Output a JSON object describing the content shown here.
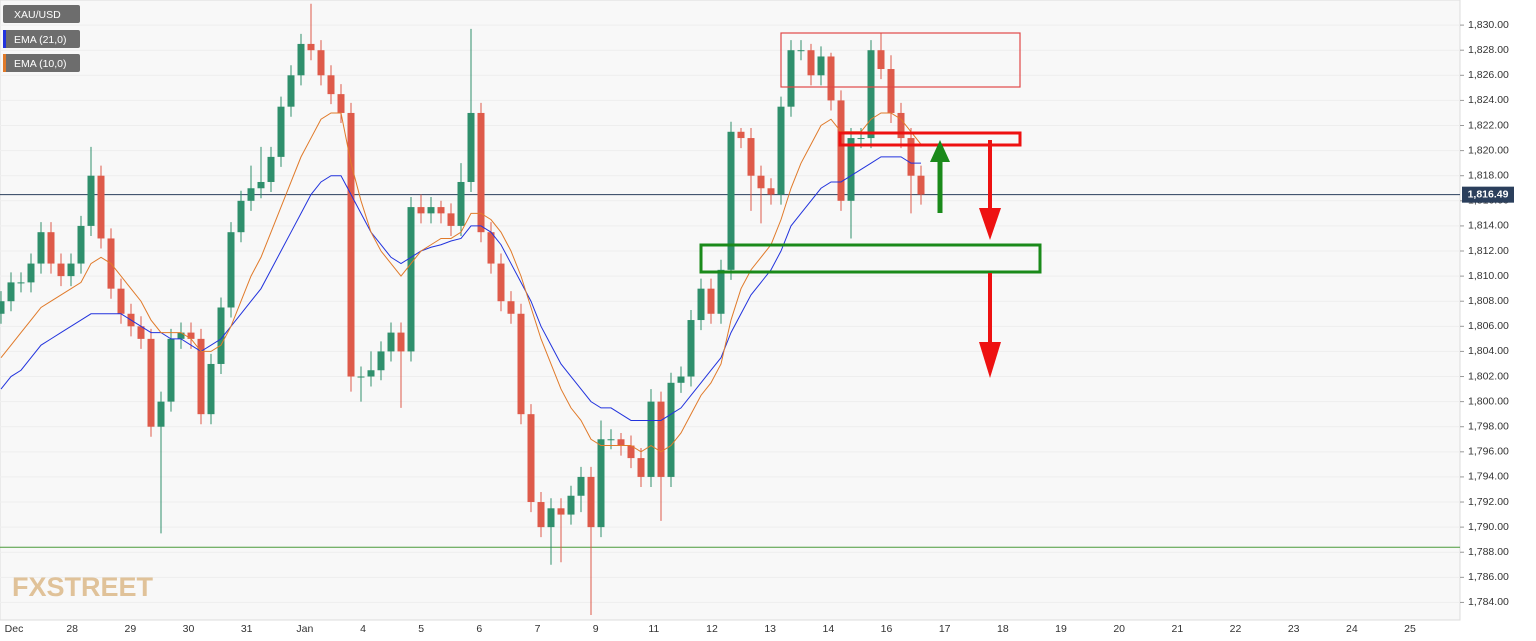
{
  "chart_data": {
    "type": "candlestick",
    "symbol": "XAU/USD",
    "indicators": [
      {
        "name": "EMA (21,0)",
        "color": "#2233dd"
      },
      {
        "name": "EMA (10,0)",
        "color": "#e07a2a"
      }
    ],
    "watermark": "FXSTREET",
    "up_color": "#2f8f6c",
    "down_color": "#de5a4a",
    "ylim": [
      1782.6,
      1832
    ],
    "yticks": [
      {
        "value": 1784,
        "label": "1,784.00"
      },
      {
        "value": 1786,
        "label": "1,786.00"
      },
      {
        "value": 1788,
        "label": "1,788.00"
      },
      {
        "value": 1790,
        "label": "1,790.00"
      },
      {
        "value": 1792,
        "label": "1,792.00"
      },
      {
        "value": 1794,
        "label": "1,794.00"
      },
      {
        "value": 1796,
        "label": "1,796.00"
      },
      {
        "value": 1798,
        "label": "1,798.00"
      },
      {
        "value": 1800,
        "label": "1,800.00"
      },
      {
        "value": 1802,
        "label": "1,802.00"
      },
      {
        "value": 1804,
        "label": "1,804.00"
      },
      {
        "value": 1806,
        "label": "1,806.00"
      },
      {
        "value": 1808,
        "label": "1,808.00"
      },
      {
        "value": 1810,
        "label": "1,810.00"
      },
      {
        "value": 1812,
        "label": "1,812.00"
      },
      {
        "value": 1814,
        "label": "1,814.00"
      },
      {
        "value": 1816,
        "label": "1,816.00"
      },
      {
        "value": 1818,
        "label": "1,818.00"
      },
      {
        "value": 1820,
        "label": "1,820.00"
      },
      {
        "value": 1822,
        "label": "1,822.00"
      },
      {
        "value": 1824,
        "label": "1,824.00"
      },
      {
        "value": 1826,
        "label": "1,826.00"
      },
      {
        "value": 1828,
        "label": "1,828.00"
      },
      {
        "value": 1830,
        "label": "1,830.00"
      }
    ],
    "x_labels": [
      "Dec",
      "28",
      "29",
      "30",
      "31",
      "Jan",
      "4",
      "5",
      "6",
      "7",
      "9",
      "11",
      "12",
      "13",
      "14",
      "16",
      "17",
      "18",
      "19",
      "20",
      "21",
      "22",
      "23",
      "24",
      "25"
    ],
    "last_price": {
      "value": 1816.49,
      "label": "1,816.49",
      "color": "#2b3f5c"
    },
    "reference_line": {
      "value": 1788.4,
      "color": "#4a9a3a"
    },
    "open": [
      1807,
      1808,
      1809.5,
      1809.5,
      1811,
      1813.5,
      1811,
      1810,
      1811,
      1814,
      1818,
      1813,
      1809,
      1807,
      1806,
      1805,
      1798,
      1800,
      1805,
      1805.5,
      1805,
      1799,
      1803,
      1807.5,
      1813.5,
      1816,
      1817,
      1817.5,
      1819.5,
      1823.5,
      1826,
      1828.5,
      1828,
      1826,
      1824.5,
      1823,
      1802,
      1802,
      1802.5,
      1804,
      1805.5,
      1804,
      1815.5,
      1815,
      1815.5,
      1815,
      1814,
      1817.5,
      1823,
      1813.5,
      1811,
      1808,
      1807,
      1799,
      1792,
      1790,
      1791.5,
      1791,
      1792.5,
      1794,
      1790,
      1797,
      1797,
      1796.5,
      1795.5,
      1794,
      1800,
      1794,
      1801.5,
      1802,
      1806.5,
      1809,
      1807,
      1810.5,
      1821.5,
      1821,
      1818,
      1817,
      1816.5,
      1823.5,
      1828,
      1828,
      1826,
      1827.5,
      1824,
      1816,
      1821,
      1821,
      1828,
      1826.5,
      1823,
      1821,
      1818
    ],
    "high": [
      1808.8,
      1810.3,
      1810.3,
      1811.8,
      1814.3,
      1814.3,
      1811.8,
      1811.8,
      1814.8,
      1820.3,
      1818.8,
      1813.8,
      1809.8,
      1807.8,
      1806.8,
      1805.8,
      1800.8,
      1805.8,
      1806.3,
      1806.3,
      1805.8,
      1803.8,
      1808.3,
      1814.3,
      1816.8,
      1818.8,
      1820.3,
      1820.3,
      1824.3,
      1826.8,
      1829.3,
      1831.7,
      1828.8,
      1826.8,
      1825.3,
      1823.8,
      1802.8,
      1804,
      1804.8,
      1806.3,
      1806.3,
      1816.3,
      1816.5,
      1816.3,
      1816,
      1815.8,
      1819,
      1829.7,
      1823.8,
      1814.3,
      1811.8,
      1808.8,
      1807.8,
      1799.8,
      1792.8,
      1792.3,
      1792.3,
      1793.3,
      1794.8,
      1794.8,
      1798.5,
      1797.8,
      1797.5,
      1797.3,
      1796.3,
      1801,
      1800.8,
      1802.3,
      1802.8,
      1807.3,
      1809.8,
      1809.8,
      1811.3,
      1822.3,
      1821.8,
      1821.8,
      1818.8,
      1817.8,
      1824.3,
      1828.8,
      1828.8,
      1828.5,
      1828.3,
      1827.8,
      1824.8,
      1821.8,
      1821.8,
      1828.8,
      1829.4,
      1827.6,
      1823.8,
      1821.8,
      1818.8
    ],
    "low": [
      1806.2,
      1807.2,
      1808.7,
      1808.7,
      1810.2,
      1810.2,
      1809.2,
      1809.2,
      1810.2,
      1813.2,
      1812.2,
      1808.2,
      1806.2,
      1805.2,
      1804.2,
      1797.2,
      1789.5,
      1799.2,
      1804.2,
      1804.2,
      1798.2,
      1798.2,
      1802.2,
      1806.7,
      1812.7,
      1815.2,
      1816.2,
      1816.7,
      1818.7,
      1822.7,
      1825.2,
      1827.2,
      1825.2,
      1823.7,
      1822.2,
      1800.8,
      1800,
      1801.2,
      1801.7,
      1803.2,
      1799.5,
      1803.2,
      1814.2,
      1814.2,
      1814.2,
      1813.2,
      1813.2,
      1816.7,
      1812.7,
      1810.2,
      1807.2,
      1806.2,
      1798.2,
      1791.2,
      1789.2,
      1787,
      1787.2,
      1790.2,
      1791.2,
      1783,
      1789.2,
      1796.2,
      1795.7,
      1794.7,
      1793.2,
      1793.2,
      1790.5,
      1793.2,
      1800.7,
      1801.2,
      1805.7,
      1806.2,
      1806.2,
      1809.7,
      1820.2,
      1815.2,
      1814.2,
      1815.7,
      1815.7,
      1822.7,
      1827.2,
      1825.2,
      1825.2,
      1823.2,
      1815.2,
      1813,
      1820.2,
      1820.2,
      1825.7,
      1822.2,
      1820.2,
      1815,
      1815.7
    ],
    "close": [
      1808,
      1809.5,
      1809.5,
      1811,
      1813.5,
      1811,
      1810,
      1811,
      1814,
      1818,
      1813,
      1809,
      1807,
      1806,
      1805,
      1798,
      1800,
      1805,
      1805.5,
      1805,
      1799,
      1803,
      1807.5,
      1813.5,
      1816,
      1817,
      1817.5,
      1819.5,
      1823.5,
      1826,
      1828.5,
      1828,
      1826,
      1824.5,
      1823,
      1802,
      1802,
      1802.5,
      1804,
      1805.5,
      1804,
      1815.5,
      1815,
      1815.5,
      1815,
      1814,
      1817.5,
      1823,
      1813.5,
      1811,
      1808,
      1807,
      1799,
      1792,
      1790,
      1791.5,
      1791,
      1792.5,
      1794,
      1790,
      1797,
      1797,
      1796.5,
      1795.5,
      1794,
      1800,
      1794,
      1801.5,
      1802,
      1806.5,
      1809,
      1807,
      1810.5,
      1821.5,
      1821,
      1818,
      1817,
      1816.5,
      1823.5,
      1828,
      1828,
      1826,
      1827.5,
      1824,
      1816,
      1821,
      1821,
      1828,
      1826.5,
      1823,
      1821,
      1818,
      1816.5
    ],
    "series": [
      {
        "name": "EMA (21,0)",
        "color": "#2233dd",
        "values": [
          1801,
          1802,
          1802.5,
          1803.5,
          1804.5,
          1805,
          1805.5,
          1806,
          1806.5,
          1807,
          1807,
          1807,
          1807,
          1806.5,
          1806,
          1805.5,
          1805.5,
          1805,
          1805,
          1804.5,
          1804,
          1804.5,
          1805,
          1806,
          1807,
          1808,
          1809,
          1810.5,
          1812,
          1813.5,
          1815,
          1816.5,
          1817.5,
          1818,
          1818,
          1816.5,
          1815,
          1813.5,
          1812.5,
          1811.5,
          1811,
          1811.5,
          1812,
          1812.3,
          1812.5,
          1812.8,
          1813,
          1814,
          1814,
          1813.5,
          1812.5,
          1811,
          1809.5,
          1808,
          1806,
          1804.5,
          1803,
          1802,
          1801,
          1800,
          1799.5,
          1799.5,
          1799,
          1798.5,
          1798.5,
          1798.5,
          1798.5,
          1799,
          1799.5,
          1800.5,
          1801.5,
          1802.5,
          1803.5,
          1805.5,
          1807,
          1808.5,
          1809.5,
          1810.5,
          1812,
          1814,
          1815,
          1816,
          1817,
          1817.5,
          1817.5,
          1818,
          1818.5,
          1819,
          1819.5,
          1819.5,
          1819.5,
          1819,
          1819
        ]
      },
      {
        "name": "EMA (10,0)",
        "color": "#e07a2a",
        "values": [
          1803.5,
          1804.5,
          1805.5,
          1806.5,
          1807.5,
          1808,
          1808.5,
          1809,
          1809.5,
          1811,
          1811.5,
          1811,
          1810,
          1809,
          1808,
          1806.5,
          1805.5,
          1805.5,
          1805.5,
          1805,
          1804,
          1804,
          1804.5,
          1806,
          1808,
          1810,
          1811.5,
          1813.5,
          1815.5,
          1817.5,
          1819.5,
          1821,
          1822.5,
          1823,
          1823,
          1819,
          1816,
          1813.5,
          1812,
          1811,
          1810,
          1811,
          1812,
          1812.5,
          1813,
          1813,
          1813.5,
          1815,
          1815,
          1814.5,
          1813.5,
          1812,
          1810,
          1807.5,
          1805,
          1803,
          1801,
          1799.5,
          1798.5,
          1797,
          1796.5,
          1796.5,
          1796.5,
          1796.5,
          1796,
          1796.5,
          1796,
          1796.5,
          1797.5,
          1799,
          1800.5,
          1801.5,
          1803,
          1806.5,
          1809,
          1810.5,
          1811.5,
          1812.5,
          1814.5,
          1817,
          1819,
          1820.5,
          1822,
          1822.5,
          1821.5,
          1821.5,
          1821.5,
          1822.5,
          1823,
          1823,
          1822.5,
          1821.5,
          1820.5
        ]
      }
    ]
  }
}
